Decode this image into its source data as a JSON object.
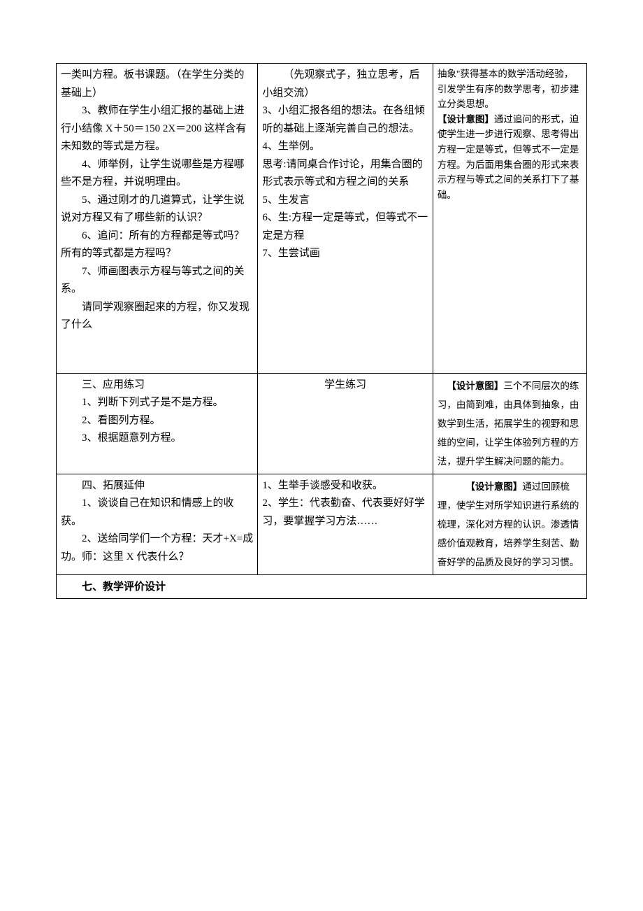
{
  "row1": {
    "col1": {
      "p1": "一类叫方程。板书课题。（在学生分类的基础上）",
      "p2": "3、教师在学生小组汇报的基础上进行小结像 X＋50＝150 2X＝200 这样含有未知数的等式是方程。",
      "p3": "4、师举例，让学生说哪些是方程哪些不是方程，并说明理由。",
      "p4": "5、通过刚才的几道算式，让学生说说对方程又有了哪些新的认识？",
      "p5": "6、追问：所有的方程都是等式吗？所有的等式都是方程吗？",
      "p6": "7、师画图表示方程与等式之间的关系。",
      "p7": "请同学观察圈起来的方程，你又发现了什么"
    },
    "col2": {
      "p1": "（先观察式子，独立思考，后小组交流）",
      "p2": "3、小组汇报各组的想法。在各组倾听的基础上逐渐完善自己的想法。",
      "p3": "4、生举例。",
      "p4": "思考:请同桌合作讨论，用集合圈的形式表示等式和方程之间的关系",
      "p5": "5、生发言",
      "p6": "6、生:方程一定是等式，但等式不一定是方程",
      "p7": "7、生尝试画"
    },
    "col3": {
      "p1": "抽象\"获得基本的数学活动经验，引发学生有序的数学思考，初步建立分类思想。",
      "label": "【设计意图】",
      "p2": "通过追问的形式，迫使学生进一步进行观察、思考得出方程一定是等式，但等式不一定是方程。为后面用集合圈的形式来表示方程与等式之间的关系打下了基础。"
    }
  },
  "row2": {
    "col1": {
      "title": "三、应用练习",
      "p1": "1、判断下列式子是不是方程。",
      "p2": "2、看图列方程。",
      "p3": "3、根据题意列方程。"
    },
    "col2": {
      "p1": "学生练习"
    },
    "col3": {
      "label": "【设计意图】",
      "p1": "三个不同层次的练习，由简到难，由具体到抽象，由数学到生活，拓展学生的视野和思维的空间，让学生体验列方程的方法，提升学生解决问题的能力。"
    }
  },
  "row3": {
    "col1": {
      "title": "四、拓展延伸",
      "p1": "1、谈谈自己在知识和情感上的收获。",
      "p2": "2、送给同学们一个方程：天才+X=成功。师：这里 X 代表什么？"
    },
    "col2": {
      "p1": "1、生举手谈感受和收获。",
      "p2": "2、学生：代表勤奋、代表要好好学习，要掌握学习方法……"
    },
    "col3": {
      "label": "【设计意图】",
      "p1": "通过回顾梳理，使学生对所学知识进行系统的梳理，深化对方程的认识。渗透情感价值观教育，培养学生刻苦、勤奋好学的品质及良好的学习习惯。"
    }
  },
  "row4": {
    "title": "七、教学评价设计"
  }
}
